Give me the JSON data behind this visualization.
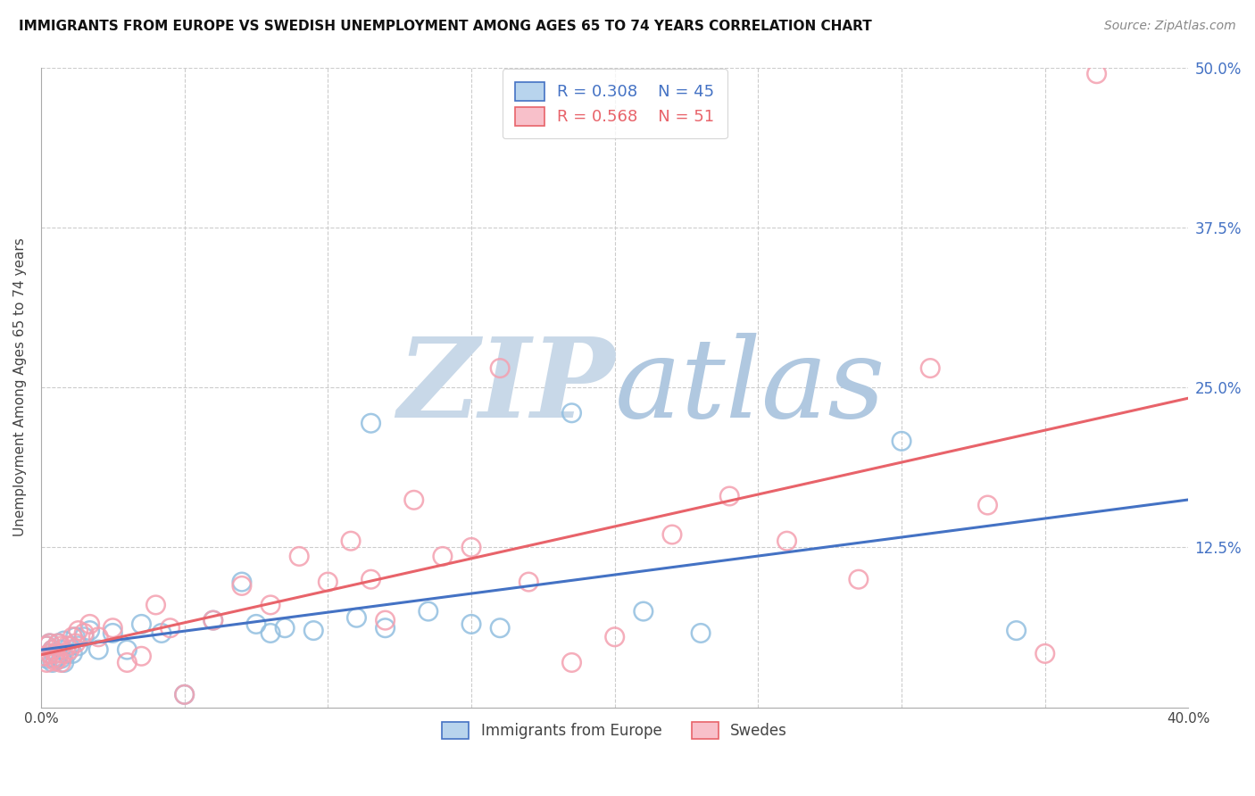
{
  "title": "IMMIGRANTS FROM EUROPE VS SWEDISH UNEMPLOYMENT AMONG AGES 65 TO 74 YEARS CORRELATION CHART",
  "source": "Source: ZipAtlas.com",
  "ylabel": "Unemployment Among Ages 65 to 74 years",
  "xlim": [
    0.0,
    0.4
  ],
  "ylim": [
    0.0,
    0.5
  ],
  "series1_label": "Immigrants from Europe",
  "series1_color": "#92bfe0",
  "series1_R": "0.308",
  "series1_N": "45",
  "series2_label": "Swedes",
  "series2_color": "#f4a0b0",
  "series2_R": "0.568",
  "series2_N": "51",
  "trendline1_color": "#4472c4",
  "trendline2_color": "#e8636a",
  "watermark_color": "#dce8f5",
  "grid_color": "#cccccc",
  "background_color": "#ffffff",
  "series1_x": [
    0.001,
    0.002,
    0.002,
    0.003,
    0.003,
    0.004,
    0.004,
    0.005,
    0.005,
    0.006,
    0.006,
    0.007,
    0.007,
    0.008,
    0.008,
    0.009,
    0.01,
    0.011,
    0.012,
    0.013,
    0.015,
    0.017,
    0.02,
    0.025,
    0.03,
    0.035,
    0.042,
    0.05,
    0.06,
    0.075,
    0.085,
    0.095,
    0.11,
    0.12,
    0.135,
    0.15,
    0.16,
    0.185,
    0.21,
    0.23,
    0.115,
    0.07,
    0.08,
    0.3,
    0.34
  ],
  "series1_y": [
    0.04,
    0.048,
    0.038,
    0.05,
    0.042,
    0.035,
    0.045,
    0.042,
    0.038,
    0.05,
    0.04,
    0.045,
    0.038,
    0.052,
    0.035,
    0.042,
    0.048,
    0.042,
    0.055,
    0.048,
    0.055,
    0.06,
    0.045,
    0.058,
    0.045,
    0.065,
    0.058,
    0.01,
    0.068,
    0.065,
    0.062,
    0.06,
    0.07,
    0.062,
    0.075,
    0.065,
    0.062,
    0.23,
    0.075,
    0.058,
    0.222,
    0.098,
    0.058,
    0.208,
    0.06
  ],
  "series2_x": [
    0.001,
    0.002,
    0.002,
    0.003,
    0.003,
    0.004,
    0.004,
    0.005,
    0.005,
    0.006,
    0.006,
    0.007,
    0.007,
    0.008,
    0.009,
    0.01,
    0.011,
    0.012,
    0.013,
    0.015,
    0.017,
    0.02,
    0.025,
    0.03,
    0.035,
    0.04,
    0.045,
    0.05,
    0.06,
    0.07,
    0.08,
    0.09,
    0.1,
    0.108,
    0.115,
    0.12,
    0.13,
    0.14,
    0.15,
    0.16,
    0.17,
    0.185,
    0.2,
    0.22,
    0.24,
    0.26,
    0.285,
    0.31,
    0.33,
    0.35,
    0.368
  ],
  "series2_y": [
    0.04,
    0.048,
    0.035,
    0.05,
    0.042,
    0.038,
    0.045,
    0.042,
    0.036,
    0.05,
    0.038,
    0.048,
    0.035,
    0.042,
    0.048,
    0.045,
    0.055,
    0.05,
    0.06,
    0.058,
    0.065,
    0.055,
    0.062,
    0.035,
    0.04,
    0.08,
    0.062,
    0.01,
    0.068,
    0.095,
    0.08,
    0.118,
    0.098,
    0.13,
    0.1,
    0.068,
    0.162,
    0.118,
    0.125,
    0.265,
    0.098,
    0.035,
    0.055,
    0.135,
    0.165,
    0.13,
    0.1,
    0.265,
    0.158,
    0.042,
    0.495
  ]
}
